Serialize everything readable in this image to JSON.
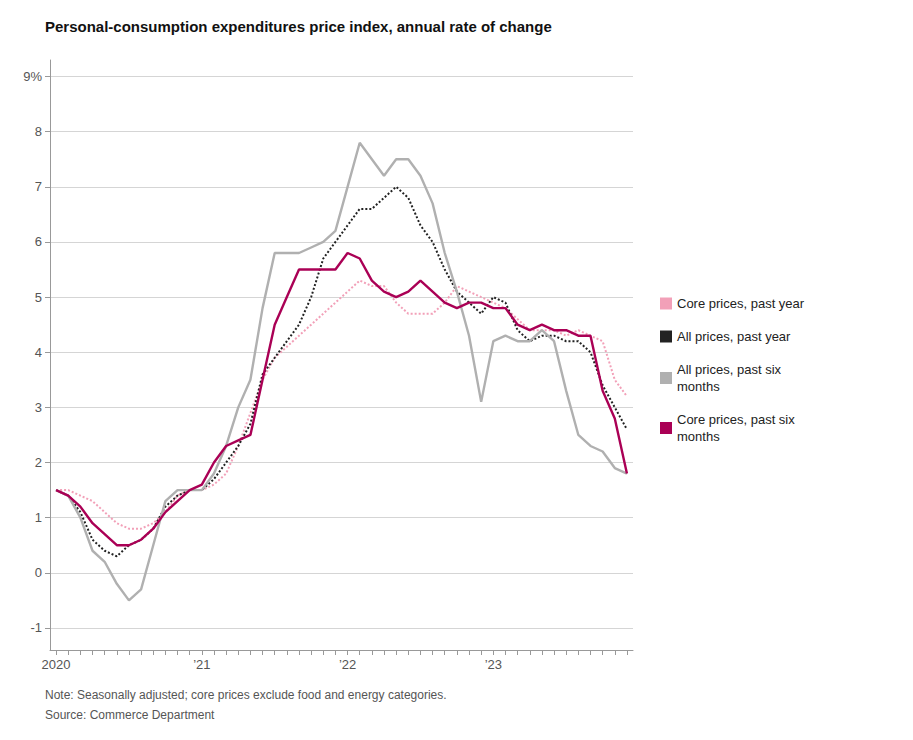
{
  "chart_data": {
    "type": "line",
    "title": "Personal-consumption expenditures price index, annual rate of change",
    "note": "Note: Seasonally adjusted; core prices exclude food and energy categories.",
    "source": "Source: Commerce Department",
    "categories": [
      "2020",
      null,
      null,
      null,
      null,
      null,
      null,
      null,
      null,
      null,
      null,
      null,
      "’21",
      null,
      null,
      null,
      null,
      null,
      null,
      null,
      null,
      null,
      null,
      null,
      "’22",
      null,
      null,
      null,
      null,
      null,
      null,
      null,
      null,
      null,
      null,
      null,
      "’23",
      null,
      null,
      null,
      null,
      null,
      null,
      null,
      null,
      null,
      null,
      null
    ],
    "ylim": [
      -1.4,
      9.3
    ],
    "yticks": [
      -1,
      0,
      1,
      2,
      3,
      4,
      5,
      6,
      7,
      8,
      {
        "value": 9,
        "label": "9%"
      }
    ],
    "grid": true,
    "legend": "right",
    "series": [
      {
        "name": "Core prices, past year",
        "color": "#f2a0b8",
        "line_style": "dotted",
        "values": [
          1.5,
          1.5,
          1.4,
          1.3,
          1.1,
          0.9,
          0.8,
          0.8,
          0.9,
          1.1,
          1.4,
          1.5,
          1.5,
          1.6,
          1.8,
          2.3,
          2.9,
          3.5,
          3.9,
          4.1,
          4.3,
          4.5,
          4.7,
          4.9,
          5.1,
          5.3,
          5.2,
          5.2,
          4.9,
          4.7,
          4.7,
          4.7,
          4.9,
          5.2,
          5.1,
          5.0,
          4.9,
          4.8,
          4.6,
          4.4,
          4.4,
          4.4,
          4.3,
          4.4,
          4.3,
          4.2,
          3.5,
          3.2
        ]
      },
      {
        "name": "All prices, past year",
        "color": "#222222",
        "line_style": "dotted",
        "values": [
          1.5,
          1.4,
          1.1,
          0.6,
          0.4,
          0.3,
          0.5,
          0.6,
          0.8,
          1.2,
          1.4,
          1.5,
          1.5,
          1.7,
          2.0,
          2.3,
          2.7,
          3.6,
          3.9,
          4.2,
          4.5,
          5.0,
          5.7,
          6.0,
          6.3,
          6.6,
          6.6,
          6.8,
          7.0,
          6.8,
          6.3,
          6.0,
          5.5,
          5.1,
          4.9,
          4.7,
          5.0,
          4.9,
          4.4,
          4.2,
          4.3,
          4.3,
          4.2,
          4.2,
          4.0,
          3.4,
          3.0,
          2.6
        ]
      },
      {
        "name": "All prices, past six\nmonths",
        "color": "#b0b0b0",
        "line_style": "solid",
        "values": [
          1.5,
          1.4,
          1.0,
          0.4,
          0.2,
          -0.2,
          -0.5,
          -0.3,
          0.5,
          1.3,
          1.5,
          1.5,
          1.5,
          1.8,
          2.3,
          3.0,
          3.5,
          4.8,
          5.8,
          5.8,
          5.8,
          5.9,
          6.0,
          6.2,
          7.0,
          7.8,
          7.5,
          7.2,
          7.5,
          7.5,
          7.2,
          6.7,
          5.8,
          5.1,
          4.3,
          3.1,
          4.2,
          4.3,
          4.2,
          4.2,
          4.4,
          4.2,
          3.3,
          2.5,
          2.3,
          2.2,
          1.9,
          1.8
        ]
      },
      {
        "name": "Core prices, past six\nmonths",
        "color": "#aa0055",
        "line_style": "solid",
        "values": [
          1.5,
          1.4,
          1.2,
          0.9,
          0.7,
          0.5,
          0.5,
          0.6,
          0.8,
          1.1,
          1.3,
          1.5,
          1.6,
          2.0,
          2.3,
          2.4,
          2.5,
          3.5,
          4.5,
          5.0,
          5.5,
          5.5,
          5.5,
          5.5,
          5.8,
          5.7,
          5.3,
          5.1,
          5.0,
          5.1,
          5.3,
          5.1,
          4.9,
          4.8,
          4.9,
          4.9,
          4.8,
          4.8,
          4.5,
          4.4,
          4.5,
          4.4,
          4.4,
          4.3,
          4.3,
          3.3,
          2.8,
          1.8
        ]
      }
    ]
  }
}
